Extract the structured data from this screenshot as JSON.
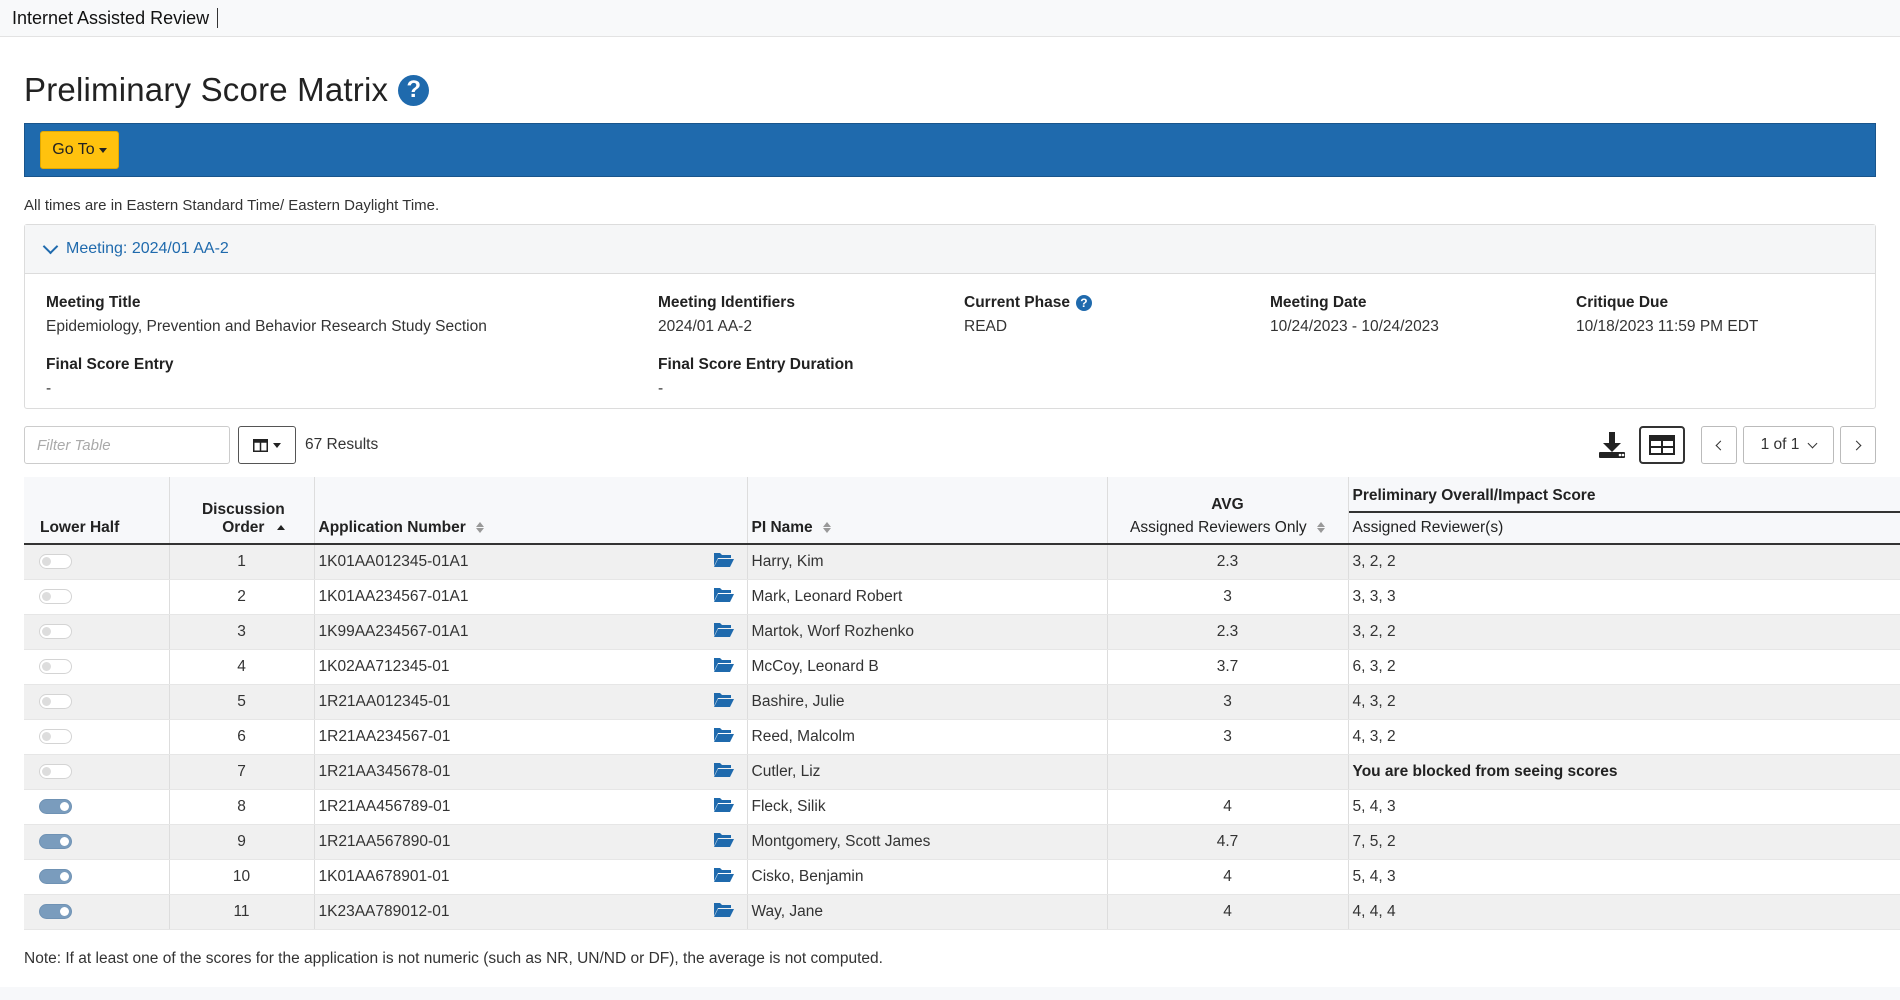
{
  "app": {
    "title": "Internet Assisted Review"
  },
  "page": {
    "title": "Preliminary Score Matrix"
  },
  "toolbar": {
    "goto_label": "Go To"
  },
  "timezone_note": "All times are in Eastern Standard Time/ Eastern Daylight Time.",
  "meeting": {
    "header_label": "Meeting:",
    "header_value": "2024/01 AA-2",
    "fields": {
      "title_label": "Meeting Title",
      "title_value": "Epidemiology, Prevention and Behavior Research Study Section",
      "identifiers_label": "Meeting Identifiers",
      "identifiers_value": "2024/01 AA-2",
      "phase_label": "Current Phase",
      "phase_value": "READ",
      "date_label": "Meeting Date",
      "date_value": "10/24/2023 - 10/24/2023",
      "critique_label": "Critique Due",
      "critique_value": "10/18/2023 11:59 PM EDT",
      "final_entry_label": "Final Score Entry",
      "final_entry_value": "-",
      "final_duration_label": "Final Score Entry Duration",
      "final_duration_value": "-"
    }
  },
  "table_controls": {
    "filter_placeholder": "Filter Table",
    "results_text": "67 Results",
    "pager_text": "1 of 1"
  },
  "columns": {
    "lower_half": "Lower Half",
    "discussion_order": "Discussion Order",
    "application_number": "Application Number",
    "pi_name": "PI Name",
    "avg": "AVG",
    "avg_sub": "Assigned Reviewers Only",
    "prelim_score": "Preliminary Overall/Impact Score",
    "assigned_reviewers": "Assigned Reviewer(s)"
  },
  "rows": [
    {
      "lower_half": false,
      "order": "1",
      "app": "1K01AA012345-01A1",
      "pi": "Harry, Kim",
      "avg": "2.3",
      "scores": "3, 2, 2",
      "blocked": false
    },
    {
      "lower_half": false,
      "order": "2",
      "app": "1K01AA234567-01A1",
      "pi": "Mark, Leonard Robert",
      "avg": "3",
      "scores": "3, 3, 3",
      "blocked": false
    },
    {
      "lower_half": false,
      "order": "3",
      "app": "1K99AA234567-01A1",
      "pi": "Martok, Worf Rozhenko",
      "avg": "2.3",
      "scores": "3, 2, 2",
      "blocked": false
    },
    {
      "lower_half": false,
      "order": "4",
      "app": "1K02AA712345-01",
      "pi": "McCoy, Leonard B",
      "avg": "3.7",
      "scores": "6, 3, 2",
      "blocked": false
    },
    {
      "lower_half": false,
      "order": "5",
      "app": "1R21AA012345-01",
      "pi": "Bashire, Julie",
      "avg": "3",
      "scores": "4, 3, 2",
      "blocked": false
    },
    {
      "lower_half": false,
      "order": "6",
      "app": "1R21AA234567-01",
      "pi": "Reed, Malcolm",
      "avg": "3",
      "scores": "4, 3, 2",
      "blocked": false
    },
    {
      "lower_half": false,
      "order": "7",
      "app": "1R21AA345678-01",
      "pi": "Cutler, Liz",
      "avg": "",
      "scores": "You are blocked from seeing scores",
      "blocked": true
    },
    {
      "lower_half": true,
      "order": "8",
      "app": "1R21AA456789-01",
      "pi": "Fleck, Silik",
      "avg": "4",
      "scores": "5, 4, 3",
      "blocked": false
    },
    {
      "lower_half": true,
      "order": "9",
      "app": "1R21AA567890-01",
      "pi": "Montgomery, Scott James",
      "avg": "4.7",
      "scores": "7, 5, 2",
      "blocked": false
    },
    {
      "lower_half": true,
      "order": "10",
      "app": "1K01AA678901-01",
      "pi": "Cisko, Benjamin",
      "avg": "4",
      "scores": "5, 4, 3",
      "blocked": false
    },
    {
      "lower_half": true,
      "order": "11",
      "app": "1K23AA789012-01",
      "pi": "Way, Jane",
      "avg": "4",
      "scores": "4, 4, 4",
      "blocked": false
    }
  ],
  "footer_note": "Note: If at least one of the scores for the application is not numeric (such as NR, UN/ND or DF), the average is not computed.",
  "icons": {
    "help": "question-circle-icon",
    "download": "download-icon",
    "grid": "grid-view-icon",
    "folder": "folder-open-icon"
  },
  "colors": {
    "primary": "#1f6aad",
    "goto": "#ffc20e"
  }
}
